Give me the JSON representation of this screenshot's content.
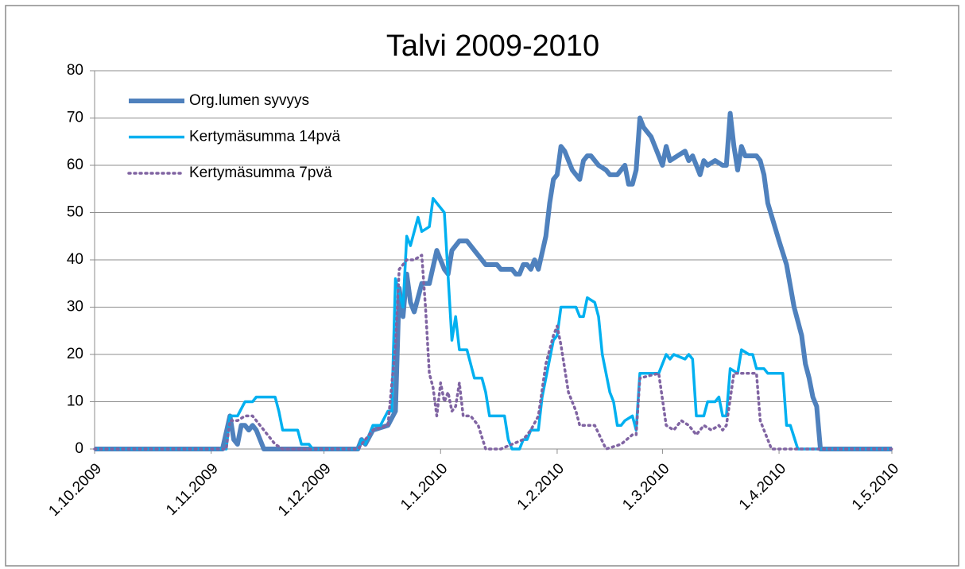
{
  "chart_data": {
    "type": "line",
    "title": "Talvi 2009-2010",
    "xlim": [
      "1.10.2009",
      "1.5.2010"
    ],
    "xticks": [
      "1.10.2009",
      "1.11.2009",
      "1.12.2009",
      "1.1.2010",
      "1.2.2010",
      "1.3.2010",
      "1.4.2010",
      "1.5.2010"
    ],
    "ylim": [
      0,
      80
    ],
    "yticks": [
      0,
      10,
      20,
      30,
      40,
      50,
      60,
      70,
      80
    ],
    "grid": true,
    "legend": "upper left",
    "series": [
      {
        "name": "Org.lumen syvyys",
        "color": "#4f81bd",
        "line_style": "solid",
        "line_width": 6,
        "x": [
          "1.10.2009",
          "4.11.2009",
          "6.11.2009",
          "7.11.2009",
          "8.11.2009",
          "9.11.2009",
          "10.11.2009",
          "11.11.2009",
          "12.11.2009",
          "13.11.2009",
          "15.11.2009",
          "10.12.2009",
          "11.12.2009",
          "12.12.2009",
          "14.12.2009",
          "18.12.2009",
          "20.12.2009",
          "21.12.2009",
          "22.12.2009",
          "23.12.2009",
          "24.12.2009",
          "25.12.2009",
          "27.12.2009",
          "29.12.2009",
          "31.12.2009",
          "2.1.2010",
          "3.1.2010",
          "4.1.2010",
          "6.1.2010",
          "8.1.2010",
          "10.1.2010",
          "13.1.2010",
          "16.1.2010",
          "17.1.2010",
          "20.1.2010",
          "21.1.2010",
          "22.1.2010",
          "23.1.2010",
          "24.1.2010",
          "25.1.2010",
          "26.1.2010",
          "27.1.2010",
          "29.1.2010",
          "30.1.2010",
          "31.1.2010",
          "1.2.2010",
          "2.2.2010",
          "3.2.2010",
          "5.2.2010",
          "7.2.2010",
          "8.2.2010",
          "9.2.2010",
          "10.2.2010",
          "12.2.2010",
          "14.2.2010",
          "15.2.2010",
          "17.2.2010",
          "19.2.2010",
          "20.2.2010",
          "21.2.2010",
          "22.2.2010",
          "23.2.2010",
          "24.2.2010",
          "26.2.2010",
          "28.2.2010",
          "1.3.2010",
          "2.3.2010",
          "3.3.2010",
          "5.3.2010",
          "7.3.2010",
          "8.3.2010",
          "9.3.2010",
          "10.3.2010",
          "11.3.2010",
          "12.3.2010",
          "13.3.2010",
          "15.3.2010",
          "17.3.2010",
          "18.3.2010",
          "19.3.2010",
          "20.3.2010",
          "21.3.2010",
          "22.3.2010",
          "23.3.2010",
          "26.3.2010",
          "27.3.2010",
          "28.3.2010",
          "29.3.2010",
          "1.4.2010",
          "3.4.2010",
          "5.4.2010",
          "7.4.2010",
          "8.4.2010",
          "9.4.2010",
          "10.4.2010",
          "11.4.2010",
          "12.4.2010",
          "1.5.2010"
        ],
        "values": [
          0,
          0,
          7,
          2,
          1,
          5,
          5,
          4,
          5,
          4,
          0,
          0,
          2,
          1,
          4,
          5,
          8,
          34,
          28,
          37,
          31,
          29,
          35,
          35,
          42,
          38,
          37,
          42,
          44,
          44,
          42,
          39,
          39,
          38,
          38,
          37,
          37,
          39,
          39,
          38,
          40,
          38,
          45,
          52,
          57,
          58,
          64,
          63,
          59,
          57,
          61,
          62,
          62,
          60,
          59,
          58,
          58,
          60,
          56,
          56,
          59,
          70,
          68,
          66,
          62,
          60,
          64,
          61,
          62,
          63,
          61,
          62,
          60,
          58,
          61,
          60,
          61,
          60,
          60,
          71,
          64,
          59,
          64,
          62,
          62,
          61,
          58,
          52,
          44,
          39,
          30,
          24,
          18,
          15,
          11,
          9,
          0,
          0
        ]
      },
      {
        "name": "Kertymäsumma 14pvä",
        "color": "#00b0f0",
        "line_style": "solid",
        "line_width": 3.5,
        "x": [
          "1.10.2009",
          "5.11.2009",
          "6.11.2009",
          "8.11.2009",
          "10.11.2009",
          "12.11.2009",
          "13.11.2009",
          "18.11.2009",
          "19.11.2009",
          "20.11.2009",
          "24.11.2009",
          "25.11.2009",
          "27.11.2009",
          "28.11.2009",
          "10.12.2009",
          "11.12.2009",
          "12.12.2009",
          "14.12.2009",
          "16.12.2009",
          "18.12.2009",
          "19.12.2009",
          "20.12.2009",
          "22.12.2009",
          "23.12.2009",
          "24.12.2009",
          "26.12.2009",
          "27.12.2009",
          "29.12.2009",
          "30.12.2009",
          "1.1.2010",
          "2.1.2010",
          "4.1.2010",
          "5.1.2010",
          "6.1.2010",
          "8.1.2010",
          "10.1.2010",
          "12.1.2010",
          "13.1.2010",
          "14.1.2010",
          "18.1.2010",
          "19.1.2010",
          "20.1.2010",
          "22.1.2010",
          "23.1.2010",
          "24.1.2010",
          "25.1.2010",
          "27.1.2010",
          "28.1.2010",
          "31.1.2010",
          "1.2.2010",
          "2.2.2010",
          "6.2.2010",
          "7.2.2010",
          "8.2.2010",
          "9.2.2010",
          "11.2.2010",
          "12.2.2010",
          "13.2.2010",
          "15.2.2010",
          "16.2.2010",
          "17.2.2010",
          "18.2.2010",
          "19.2.2010",
          "21.2.2010",
          "22.2.2010",
          "23.2.2010",
          "28.2.2010",
          "2.3.2010",
          "3.3.2010",
          "4.3.2010",
          "7.3.2010",
          "8.3.2010",
          "9.3.2010",
          "10.3.2010",
          "12.3.2010",
          "13.3.2010",
          "15.3.2010",
          "16.3.2010",
          "17.3.2010",
          "18.3.2010",
          "19.3.2010",
          "21.3.2010",
          "22.3.2010",
          "24.3.2010",
          "25.3.2010",
          "26.3.2010",
          "28.3.2010",
          "29.3.2010",
          "2.4.2010",
          "3.4.2010",
          "4.4.2010",
          "6.4.2010",
          "1.5.2010"
        ],
        "values": [
          0,
          0,
          7,
          7,
          10,
          10,
          11,
          11,
          8,
          4,
          4,
          1,
          1,
          0,
          0,
          2,
          1,
          5,
          5,
          8,
          8,
          36,
          30,
          45,
          43,
          49,
          46,
          47,
          53,
          51,
          50,
          23,
          28,
          21,
          21,
          15,
          15,
          12,
          7,
          7,
          2,
          0,
          0,
          2,
          2,
          4,
          4,
          11,
          23,
          24,
          30,
          30,
          28,
          28,
          32,
          31,
          28,
          20,
          12,
          10,
          5,
          5,
          6,
          7,
          4,
          16,
          16,
          20,
          19,
          20,
          19,
          20,
          19,
          7,
          7,
          10,
          10,
          11,
          7,
          7,
          17,
          16,
          21,
          20,
          20,
          17,
          17,
          16,
          16,
          5,
          5,
          0,
          0
        ]
      },
      {
        "name": "Kertymäsumma 7pvä",
        "color": "#8064a2",
        "line_style": "dotted",
        "line_width": 3.5,
        "x": [
          "1.10.2009",
          "5.11.2009",
          "6.11.2009",
          "8.11.2009",
          "10.11.2009",
          "12.11.2009",
          "14.11.2009",
          "16.11.2009",
          "18.11.2009",
          "20.11.2009",
          "10.12.2009",
          "12.12.2009",
          "14.12.2009",
          "18.12.2009",
          "20.12.2009",
          "21.12.2009",
          "23.12.2009",
          "25.12.2009",
          "27.12.2009",
          "28.12.2009",
          "29.12.2009",
          "30.12.2009",
          "31.12.2009",
          "1.1.2010",
          "2.1.2010",
          "3.1.2010",
          "4.1.2010",
          "5.1.2010",
          "6.1.2010",
          "7.1.2010",
          "9.1.2010",
          "11.1.2010",
          "13.1.2010",
          "17.1.2010",
          "23.1.2010",
          "25.1.2010",
          "27.1.2010",
          "29.1.2010",
          "31.1.2010",
          "1.2.2010",
          "2.2.2010",
          "4.2.2010",
          "6.2.2010",
          "7.2.2010",
          "9.2.2010",
          "11.2.2010",
          "14.2.2010",
          "18.2.2010",
          "21.2.2010",
          "22.2.2010",
          "23.2.2010",
          "28.2.2010",
          "2.3.2010",
          "4.3.2010",
          "6.3.2010",
          "8.3.2010",
          "10.3.2010",
          "12.3.2010",
          "14.3.2010",
          "16.3.2010",
          "17.3.2010",
          "18.3.2010",
          "20.3.2010",
          "24.3.2010",
          "26.3.2010",
          "27.3.2010",
          "28.3.2010",
          "30.3.2010",
          "1.5.2010"
        ],
        "values": [
          0,
          0,
          6,
          6,
          7,
          7,
          5,
          3,
          1,
          0,
          0,
          2,
          4,
          5,
          22,
          38,
          40,
          40,
          41,
          30,
          16,
          13,
          7,
          14,
          10,
          12,
          8,
          9,
          14,
          7,
          7,
          5,
          0,
          0,
          2,
          4,
          7,
          18,
          24,
          26,
          22,
          12,
          8,
          5,
          5,
          5,
          0,
          1,
          3,
          3,
          15,
          16,
          5,
          4,
          6,
          5,
          3,
          5,
          4,
          5,
          4,
          5,
          16,
          16,
          16,
          6,
          4,
          0,
          0
        ]
      }
    ]
  }
}
